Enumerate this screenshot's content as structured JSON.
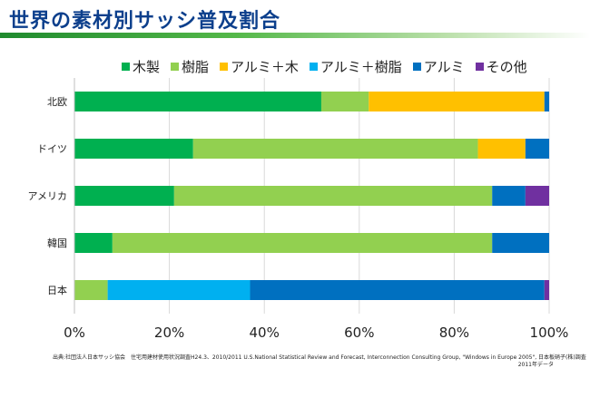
{
  "page": {
    "title": "世界の素材別サッシ普及割合",
    "source_line1": "出典:社団法人日本サッシ協会　住宅用建材使用状況調査H24.3、2010/2011 U.S.National Statistical Review and Forecast, Interconnection Consulting Group, \"Windows in Europe 2005\", 日本板硝子(株)調査",
    "source_line2": "2011年データ"
  },
  "chart_data": {
    "type": "bar",
    "orientation": "horizontal",
    "stacked": true,
    "percent": true,
    "title": "",
    "xlabel": "",
    "ylabel": "",
    "xlim": [
      0,
      100
    ],
    "xticks": [
      "0%",
      "20%",
      "40%",
      "60%",
      "80%",
      "100%"
    ],
    "grid": true,
    "legend_position": "top",
    "categories": [
      "北欧",
      "ドイツ",
      "アメリカ",
      "韓国",
      "日本"
    ],
    "series": [
      {
        "name": "木製",
        "color": "#00b050",
        "values": [
          52,
          25,
          21,
          8,
          0
        ]
      },
      {
        "name": "樹脂",
        "color": "#92d050",
        "values": [
          10,
          60,
          67,
          80,
          7
        ]
      },
      {
        "name": "アルミ＋木",
        "color": "#ffc000",
        "values": [
          37,
          10,
          0,
          0,
          0
        ]
      },
      {
        "name": "アルミ＋樹脂",
        "color": "#00b0f0",
        "values": [
          0,
          0,
          0,
          0,
          30
        ]
      },
      {
        "name": "アルミ",
        "color": "#0070c0",
        "values": [
          1,
          5,
          7,
          12,
          62
        ]
      },
      {
        "name": "その他",
        "color": "#7030a0",
        "values": [
          0,
          0,
          5,
          0,
          1
        ]
      }
    ]
  }
}
